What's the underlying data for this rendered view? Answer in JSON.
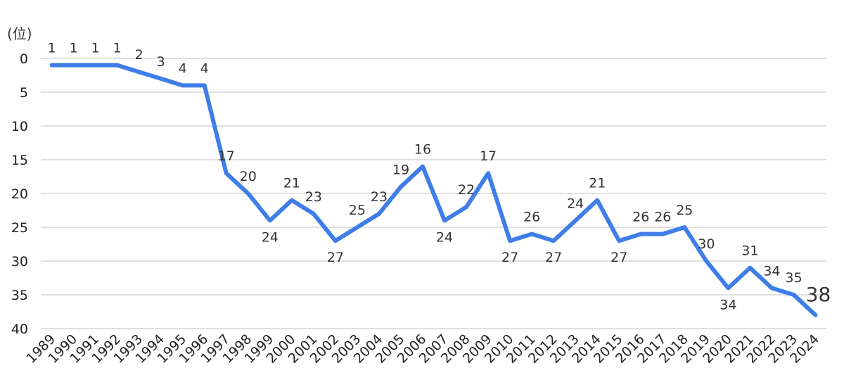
{
  "chart_data": {
    "type": "line",
    "ylabel": "(位)",
    "y_inverted": true,
    "ylim": [
      0,
      40
    ],
    "yticks": [
      0,
      5,
      10,
      15,
      20,
      25,
      30,
      35,
      40
    ],
    "grid": true,
    "line_color": "#3f7ee8",
    "x": [
      "1989",
      "1990",
      "1991",
      "1992",
      "1993",
      "1994",
      "1995",
      "1996",
      "1997",
      "1998",
      "1999",
      "2000",
      "2001",
      "2002",
      "2003",
      "2004",
      "2005",
      "2006",
      "2007",
      "2008",
      "2009",
      "2010",
      "2011",
      "2012",
      "2013",
      "2014",
      "2015",
      "2016",
      "2017",
      "2018",
      "2019",
      "2020",
      "2021",
      "2022",
      "2023",
      "2024"
    ],
    "values": [
      1,
      1,
      1,
      1,
      2,
      3,
      4,
      4,
      17,
      20,
      24,
      21,
      23,
      27,
      25,
      23,
      19,
      16,
      24,
      22,
      17,
      27,
      26,
      27,
      24,
      21,
      27,
      26,
      26,
      25,
      30,
      34,
      31,
      34,
      35,
      38
    ]
  }
}
